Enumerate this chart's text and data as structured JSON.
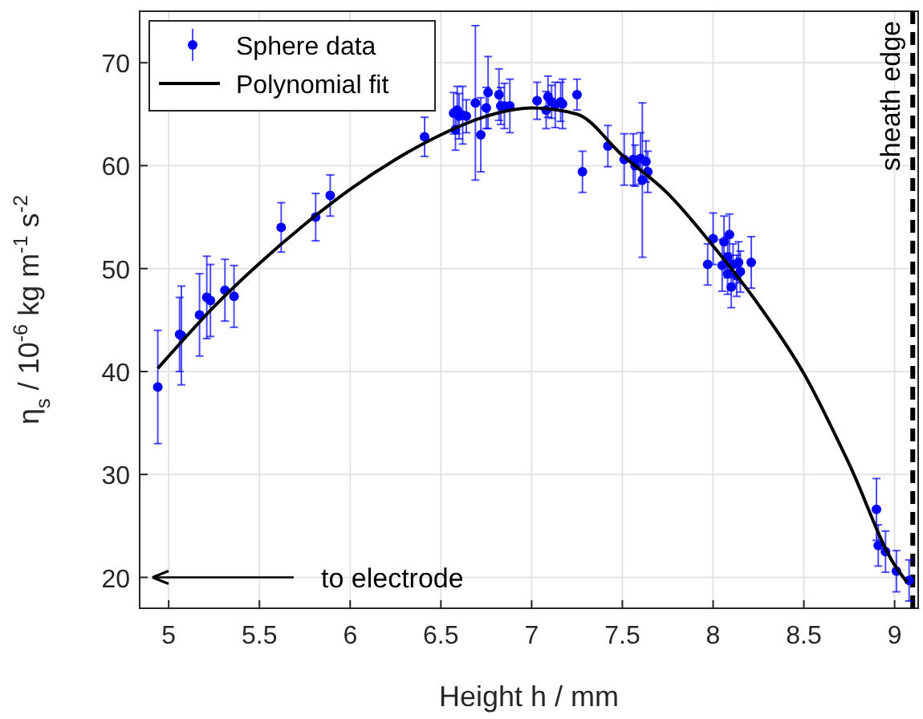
{
  "chart_data": {
    "type": "scatter",
    "xlabel": "Height h / mm",
    "ylabel": "η$_{s}$ / 10$^{-6}$ kg m$^{-1}$ s$^{-2}$",
    "xlim": [
      4.84,
      9.13
    ],
    "xticks": [
      5,
      5.5,
      6,
      6.5,
      7,
      7.5,
      8,
      8.5,
      9
    ],
    "ylim": [
      17,
      75
    ],
    "yticks": [
      20,
      30,
      40,
      50,
      60,
      70
    ],
    "grid": true,
    "legend": "top left",
    "marker": "circle",
    "series": [
      {
        "name": "Sphere data",
        "color": "#0000ff",
        "x": [
          4.94,
          5.06,
          5.07,
          5.17,
          5.21,
          5.23,
          5.31,
          5.36,
          5.62,
          5.81,
          5.89,
          6.41,
          6.57,
          6.58,
          6.59,
          6.6,
          6.62,
          6.64,
          6.69,
          6.72,
          6.75,
          6.76,
          6.82,
          6.83,
          6.85,
          6.88,
          7.03,
          7.08,
          7.09,
          7.11,
          7.13,
          7.16,
          7.17,
          7.25,
          7.28,
          7.42,
          7.51,
          7.56,
          7.57,
          7.6,
          7.61,
          7.63,
          7.64,
          7.97,
          8.0,
          8.05,
          8.06,
          8.08,
          8.08,
          8.09,
          8.1,
          8.11,
          8.13,
          8.14,
          8.15,
          8.21,
          8.9,
          8.91,
          8.95,
          9.01,
          9.08
        ],
        "values": [
          38.5,
          43.6,
          43.5,
          45.5,
          47.2,
          46.9,
          47.9,
          47.3,
          54.0,
          55.0,
          57.1,
          62.8,
          65.1,
          63.5,
          65.4,
          64.8,
          64.9,
          64.8,
          66.1,
          63.0,
          65.6,
          67.1,
          66.9,
          65.8,
          65.8,
          65.8,
          66.3,
          65.4,
          66.7,
          66.2,
          65.9,
          66.2,
          66.0,
          66.9,
          59.4,
          61.9,
          60.6,
          60.6,
          60.0,
          60.7,
          58.6,
          60.4,
          59.4,
          50.4,
          52.9,
          50.3,
          52.6,
          51.1,
          49.5,
          53.3,
          48.2,
          50.4,
          49.3,
          50.6,
          49.7,
          50.6,
          26.6,
          23.1,
          22.5,
          20.6,
          19.7
        ],
        "errors": [
          5.5,
          3.6,
          4.8,
          4,
          4,
          3.5,
          3,
          3,
          2.4,
          2.3,
          2,
          1.9,
          2,
          2,
          2.3,
          2.2,
          2.8,
          1.6,
          7.5,
          3.6,
          2,
          3.5,
          2.5,
          1.8,
          2.2,
          2.6,
          1.8,
          1.8,
          2.0,
          1.6,
          2.2,
          1.9,
          2.4,
          1.5,
          2,
          2,
          2.5,
          2.5,
          2,
          2.5,
          7.5,
          2,
          2,
          2,
          2.5,
          2.5,
          2.5,
          2,
          2,
          2,
          2,
          2,
          2,
          2,
          2,
          2.5,
          3,
          2,
          2,
          2,
          2
        ]
      },
      {
        "name": "Polynomial fit",
        "type": "line",
        "color": "#000000",
        "line_style": "solid",
        "marker": "none",
        "x": [
          4.94,
          5.0,
          5.25,
          5.5,
          5.75,
          6.0,
          6.25,
          6.5,
          6.75,
          7.0,
          7.25,
          7.5,
          7.75,
          8.0,
          8.25,
          8.5,
          8.75,
          9.0,
          9.07
        ],
        "values": [
          40.3,
          41.5,
          46.3,
          50.5,
          54.3,
          57.7,
          60.6,
          63.0,
          64.8,
          65.6,
          65.0,
          61.0,
          57.3,
          52.2,
          46.5,
          39.8,
          31.0,
          21.2,
          19.5
        ]
      }
    ],
    "ref_lines": [
      {
        "axis": "x",
        "value": 9.1,
        "label": "sheath edge",
        "color": "#000000",
        "line_style": "dashed"
      }
    ],
    "annotations": [
      "to electrode"
    ]
  }
}
